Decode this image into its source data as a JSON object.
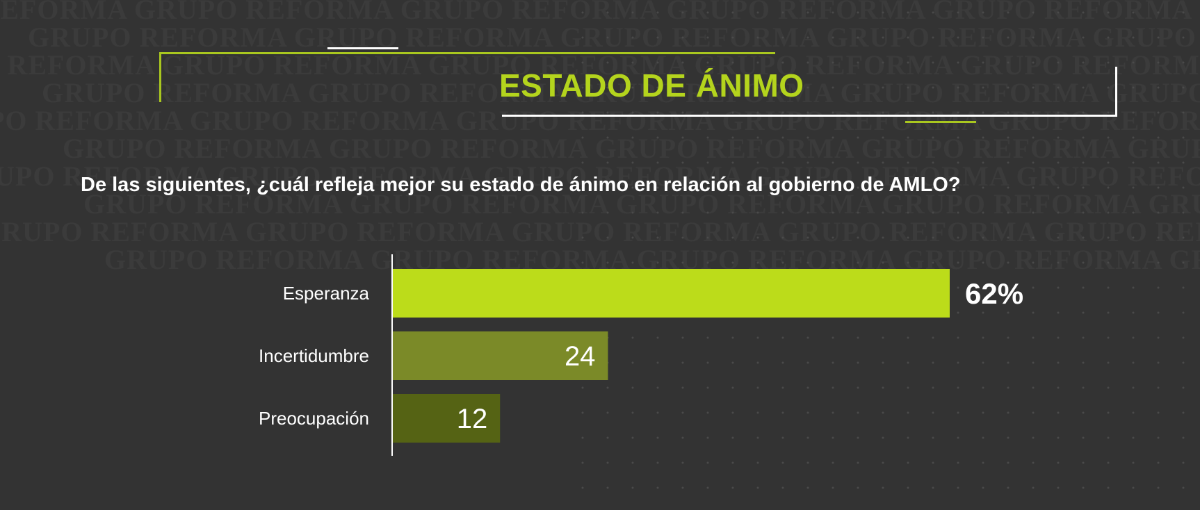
{
  "watermark_text": "GRUPO REFORMA",
  "header": {
    "title": "ESTADO DE ÁNIMO"
  },
  "question": "De las siguientes, ¿cuál refleja mejor su estado de ánimo en relación al gobierno de AMLO?",
  "colors": {
    "background": "#333333",
    "accent": "#b4d41d",
    "frame_white": "#ffffff",
    "bars": [
      "#bcdc1a",
      "#7b8a28",
      "#556314"
    ]
  },
  "chart_data": {
    "type": "bar",
    "orientation": "horizontal",
    "title": "",
    "categories": [
      "Esperanza",
      "Incertidumbre",
      "Preocupación"
    ],
    "values": [
      62,
      24,
      12
    ],
    "value_labels": [
      "62%",
      "24",
      "12"
    ],
    "xlabel": "",
    "ylabel": "",
    "xlim": [
      0,
      100
    ],
    "grid": false,
    "legend": "none"
  }
}
